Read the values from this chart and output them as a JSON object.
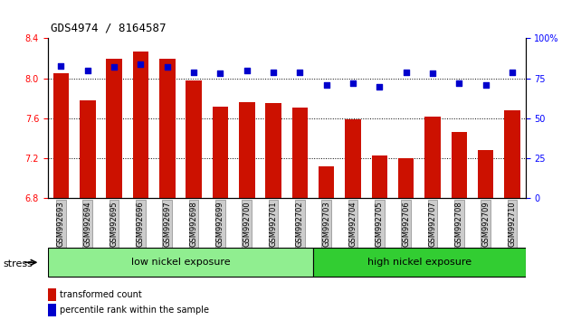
{
  "title": "GDS4974 / 8164587",
  "samples": [
    "GSM992693",
    "GSM992694",
    "GSM992695",
    "GSM992696",
    "GSM992697",
    "GSM992698",
    "GSM992699",
    "GSM992700",
    "GSM992701",
    "GSM992702",
    "GSM992703",
    "GSM992704",
    "GSM992705",
    "GSM992706",
    "GSM992707",
    "GSM992708",
    "GSM992709",
    "GSM992710"
  ],
  "bar_values": [
    8.05,
    7.78,
    8.2,
    8.27,
    8.2,
    7.98,
    7.72,
    7.76,
    7.75,
    7.71,
    7.12,
    7.59,
    7.23,
    7.2,
    7.62,
    7.46,
    7.28,
    7.68
  ],
  "dot_values": [
    83,
    80,
    82,
    84,
    82,
    79,
    78,
    80,
    79,
    79,
    71,
    72,
    70,
    79,
    78,
    72,
    71,
    79
  ],
  "bar_color": "#cc1100",
  "dot_color": "#0000cc",
  "ymin": 6.8,
  "ymax": 8.4,
  "y2min": 0,
  "y2max": 100,
  "yticks": [
    6.8,
    7.2,
    7.6,
    8.0,
    8.4
  ],
  "y2ticks": [
    0,
    25,
    50,
    75,
    100
  ],
  "low_nickel_count": 10,
  "low_nickel_label": "low nickel exposure",
  "high_nickel_label": "high nickel exposure",
  "stress_label": "stress",
  "legend_bar": "transformed count",
  "legend_dot": "percentile rank within the sample",
  "bg_color_xticklabels": "#d0d0d0",
  "low_nickel_bg": "#90ee90",
  "high_nickel_bg": "#32cd32"
}
